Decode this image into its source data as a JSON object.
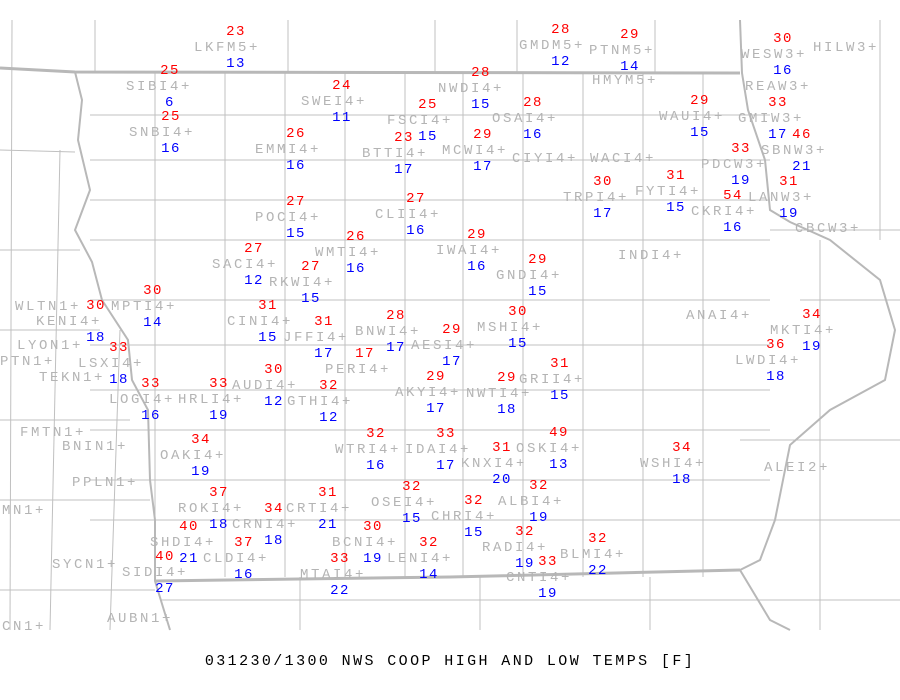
{
  "title": "031230/1300 NWS COOP HIGH AND LOW TEMPS [F]",
  "colors": {
    "high": "#ff0000",
    "low": "#0000ff",
    "station_label": "#b4b4b4",
    "boundary": "#c0c0c0"
  },
  "stations": [
    {
      "name": "LKFM5+",
      "hi": "23",
      "lo": "13"
    },
    {
      "name": "SIBI4+",
      "hi": "25",
      "lo": "6"
    },
    {
      "name": "SNBI4+",
      "hi": "25",
      "lo": "16"
    },
    {
      "name": "SWEI4+",
      "hi": "24",
      "lo": "11"
    },
    {
      "name": "FSCI4+",
      "hi": "25",
      "lo": "15"
    },
    {
      "name": "BTTI4+",
      "hi": "23",
      "lo": "17"
    },
    {
      "name": "EMMI4+",
      "hi": "26",
      "lo": "16"
    },
    {
      "name": "POCI4+",
      "hi": "27",
      "lo": "15"
    },
    {
      "name": "CLII4+",
      "hi": "27",
      "lo": "16"
    },
    {
      "name": "WMTI4+",
      "hi": "26",
      "lo": "16"
    },
    {
      "name": "SACI4+",
      "hi": "27",
      "lo": "12"
    },
    {
      "name": "RKWI4+",
      "hi": "27",
      "lo": "15"
    },
    {
      "name": "NWDI4+",
      "hi": "28",
      "lo": "15"
    },
    {
      "name": "GMDM5+",
      "hi": "28",
      "lo": "12"
    },
    {
      "name": "PTNM5+",
      "hi": "29",
      "lo": "14"
    },
    {
      "name": "HMYM5+",
      "hi": null,
      "lo": null
    },
    {
      "name": "OSAI4+",
      "hi": "28",
      "lo": "16"
    },
    {
      "name": "MCWI4+",
      "hi": "29",
      "lo": "17"
    },
    {
      "name": "CIYI4+",
      "hi": null,
      "lo": null
    },
    {
      "name": "WACI4+",
      "hi": null,
      "lo": null
    },
    {
      "name": "WAUI4+",
      "hi": "29",
      "lo": "15"
    },
    {
      "name": "WESW3+",
      "hi": "30",
      "lo": "16"
    },
    {
      "name": "HILW3+",
      "hi": null,
      "lo": null
    },
    {
      "name": "REAW3+",
      "hi": null,
      "lo": null
    },
    {
      "name": "GMIW3+",
      "hi": "33",
      "lo": "17"
    },
    {
      "name": "SBNW3+",
      "hi": "46",
      "lo": "21"
    },
    {
      "name": "PDCW3+",
      "hi": "33",
      "lo": "19"
    },
    {
      "name": "LANW3+",
      "hi": "31",
      "lo": "19"
    },
    {
      "name": "CBCW3+",
      "hi": null,
      "lo": null
    },
    {
      "name": "TRPI4+",
      "hi": "30",
      "lo": "17"
    },
    {
      "name": "FYTI4+",
      "hi": "31",
      "lo": "15"
    },
    {
      "name": "CKRI4+",
      "hi": "54",
      "lo": "16"
    },
    {
      "name": "INDI4+",
      "hi": null,
      "lo": null
    },
    {
      "name": "IWAI4+",
      "hi": "29",
      "lo": "16"
    },
    {
      "name": "GNDI4+",
      "hi": "29",
      "lo": "15"
    },
    {
      "name": "ANAI4+",
      "hi": null,
      "lo": null
    },
    {
      "name": "MKTI4+",
      "hi": "34",
      "lo": "19"
    },
    {
      "name": "LWDI4+",
      "hi": "36",
      "lo": "18"
    },
    {
      "name": "MSHI4+",
      "hi": "30",
      "lo": "15"
    },
    {
      "name": "BNWI4+",
      "hi": "28",
      "lo": "17"
    },
    {
      "name": "AESI4+",
      "hi": "29",
      "lo": "17"
    },
    {
      "name": "JFFI4+",
      "hi": "31",
      "lo": "17"
    },
    {
      "name": "PERI4+",
      "hi": "17",
      "lo": null
    },
    {
      "name": "CINI4+",
      "hi": "31",
      "lo": "15"
    },
    {
      "name": "AKYI4+",
      "hi": "29",
      "lo": "17"
    },
    {
      "name": "NWTI4+",
      "hi": "29",
      "lo": "18"
    },
    {
      "name": "GRII4+",
      "hi": "31",
      "lo": "15"
    },
    {
      "name": "WTRI4+",
      "hi": "32",
      "lo": "16"
    },
    {
      "name": "IDAI4+",
      "hi": "33",
      "lo": "17"
    },
    {
      "name": "KNXI4+",
      "hi": "31",
      "lo": "20"
    },
    {
      "name": "OSKI4+",
      "hi": "49",
      "lo": "13"
    },
    {
      "name": "WSHI4+",
      "hi": "34",
      "lo": "18"
    },
    {
      "name": "ALEI2+",
      "hi": null,
      "lo": null
    },
    {
      "name": "ALBI4+",
      "hi": "32",
      "lo": "19"
    },
    {
      "name": "CHRI4+",
      "hi": "32",
      "lo": "15"
    },
    {
      "name": "OSEI4+",
      "hi": "32",
      "lo": "15"
    },
    {
      "name": "CRTI4+",
      "hi": "31",
      "lo": "21"
    },
    {
      "name": "CRNI4+",
      "hi": "34",
      "lo": "18"
    },
    {
      "name": "ROKI4+",
      "hi": "37",
      "lo": "18"
    },
    {
      "name": "BCNI4+",
      "hi": "30",
      "lo": "19"
    },
    {
      "name": "MTAI4+",
      "hi": "33",
      "lo": "22"
    },
    {
      "name": "LENI4+",
      "hi": "32",
      "lo": "14"
    },
    {
      "name": "RADI4+",
      "hi": "32",
      "lo": "19"
    },
    {
      "name": "CNTI4+",
      "hi": "33",
      "lo": "19"
    },
    {
      "name": "BLMI4+",
      "hi": "32",
      "lo": "22"
    },
    {
      "name": "CLDI4+",
      "hi": "37",
      "lo": "16"
    },
    {
      "name": "SHDI4+",
      "hi": "40",
      "lo": "21"
    },
    {
      "name": "SIDI4+",
      "hi": "40",
      "lo": "27"
    },
    {
      "name": "OAKI4+",
      "hi": "34",
      "lo": "19"
    },
    {
      "name": "LOGI4+",
      "hi": "33",
      "lo": "16"
    },
    {
      "name": "HRLI4+",
      "hi": "33",
      "lo": "19"
    },
    {
      "name": "AUDI4+",
      "hi": "30",
      "lo": "12"
    },
    {
      "name": "GTHI4+",
      "hi": "32",
      "lo": "12"
    },
    {
      "name": "LSXI4+",
      "hi": "33",
      "lo": "18"
    },
    {
      "name": "TEKN1+",
      "hi": null,
      "lo": null
    },
    {
      "name": "MPTI4+",
      "hi": "30",
      "lo": "14"
    },
    {
      "name": "KENI4+",
      "hi": "30",
      "lo": "18"
    },
    {
      "name": "WLTN1+",
      "hi": null,
      "lo": null
    },
    {
      "name": "LYON1+",
      "hi": null,
      "lo": null
    },
    {
      "name": "PTN1+",
      "hi": null,
      "lo": null
    },
    {
      "name": "FMTN1+",
      "hi": null,
      "lo": null
    },
    {
      "name": "BNIN1+",
      "hi": null,
      "lo": null
    },
    {
      "name": "PPLN1+",
      "hi": null,
      "lo": null
    },
    {
      "name": "MN1+",
      "hi": null,
      "lo": null
    },
    {
      "name": "SYCN1+",
      "hi": null,
      "lo": null
    },
    {
      "name": "AUBN1+",
      "hi": null,
      "lo": null
    },
    {
      "name": "CN1+",
      "hi": null,
      "lo": null
    }
  ]
}
